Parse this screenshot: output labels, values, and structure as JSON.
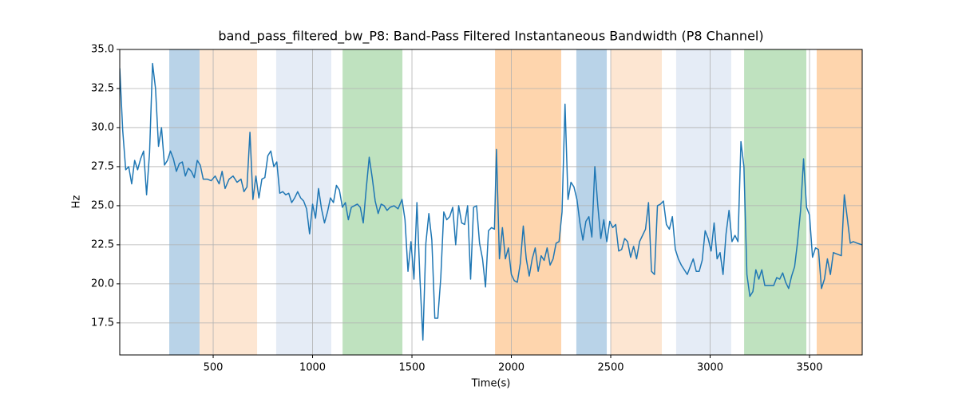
{
  "chart_data": {
    "type": "line",
    "title": "band_pass_filtered_bw_P8: Band-Pass Filtered Instantaneous Bandwidth (P8 Channel)",
    "xlabel": "Time(s)",
    "ylabel": "Hz",
    "color": "#1f77b4",
    "grid": true,
    "xlim": [
      30,
      3765
    ],
    "ylim": [
      15.45,
      35
    ],
    "xticks": [
      500,
      1000,
      1500,
      2000,
      2500,
      3000,
      3500
    ],
    "yticks": [
      17.5,
      {
        "value": 20,
        "label": "20.0"
      },
      22.5,
      {
        "value": 25,
        "label": "25.0"
      },
      27.5,
      {
        "value": 30,
        "label": "30.0"
      },
      32.5,
      {
        "value": 35,
        "label": "35.0"
      }
    ],
    "bands": [
      {
        "x0": 279,
        "x1": 432,
        "color": "#b9d3e8"
      },
      {
        "x0": 432,
        "x1": 721,
        "color": "#fde6d2"
      },
      {
        "x0": 817,
        "x1": 1094,
        "color": "#e5ecf6"
      },
      {
        "x0": 1151,
        "x1": 1452,
        "color": "#bfe2bf"
      },
      {
        "x0": 1918,
        "x1": 2251,
        "color": "#fed5ad"
      },
      {
        "x0": 2327,
        "x1": 2480,
        "color": "#b9d3e8"
      },
      {
        "x0": 2500,
        "x1": 2757,
        "color": "#fde6d2"
      },
      {
        "x0": 2829,
        "x1": 3106,
        "color": "#e5ecf6"
      },
      {
        "x0": 3171,
        "x1": 3484,
        "color": "#bfe2bf"
      },
      {
        "x0": 3536,
        "x1": 3780,
        "color": "#fed5ad"
      }
    ],
    "x": [
      30,
      45,
      60,
      75,
      90,
      105,
      120,
      135,
      150,
      165,
      180,
      195,
      210,
      225,
      240,
      255,
      270,
      285,
      300,
      315,
      330,
      345,
      360,
      375,
      390,
      405,
      420,
      435,
      450,
      470,
      490,
      510,
      530,
      545,
      560,
      580,
      600,
      620,
      640,
      655,
      670,
      685,
      700,
      715,
      730,
      745,
      760,
      775,
      790,
      805,
      820,
      835,
      850,
      865,
      880,
      895,
      910,
      925,
      940,
      955,
      970,
      985,
      1000,
      1015,
      1030,
      1045,
      1060,
      1075,
      1090,
      1105,
      1120,
      1135,
      1150,
      1165,
      1180,
      1195,
      1210,
      1225,
      1240,
      1255,
      1270,
      1285,
      1300,
      1315,
      1330,
      1345,
      1360,
      1375,
      1390,
      1410,
      1430,
      1450,
      1465,
      1480,
      1495,
      1510,
      1525,
      1540,
      1555,
      1570,
      1585,
      1600,
      1615,
      1630,
      1645,
      1660,
      1675,
      1690,
      1705,
      1720,
      1735,
      1750,
      1765,
      1780,
      1795,
      1810,
      1825,
      1840,
      1855,
      1870,
      1885,
      1900,
      1915,
      1925,
      1940,
      1955,
      1970,
      1985,
      2000,
      2015,
      2030,
      2045,
      2060,
      2075,
      2090,
      2105,
      2120,
      2135,
      2150,
      2165,
      2180,
      2195,
      2210,
      2225,
      2240,
      2255,
      2270,
      2285,
      2300,
      2315,
      2330,
      2345,
      2360,
      2375,
      2390,
      2405,
      2420,
      2435,
      2450,
      2465,
      2480,
      2495,
      2510,
      2525,
      2540,
      2555,
      2570,
      2585,
      2600,
      2615,
      2630,
      2645,
      2660,
      2675,
      2690,
      2705,
      2720,
      2735,
      2750,
      2765,
      2780,
      2795,
      2810,
      2825,
      2840,
      2855,
      2870,
      2885,
      2900,
      2915,
      2930,
      2945,
      2960,
      2975,
      2990,
      3005,
      3020,
      3035,
      3050,
      3065,
      3080,
      3095,
      3110,
      3125,
      3140,
      3155,
      3170,
      3185,
      3200,
      3215,
      3230,
      3245,
      3260,
      3275,
      3290,
      3305,
      3320,
      3335,
      3350,
      3365,
      3380,
      3395,
      3410,
      3425,
      3440,
      3455,
      3470,
      3485,
      3500,
      3515,
      3530,
      3545,
      3560,
      3575,
      3590,
      3605,
      3620,
      3640,
      3660,
      3675,
      3690,
      3705,
      3720,
      3740,
      3765
    ],
    "values": [
      33.8,
      29.8,
      27.3,
      27.5,
      26.4,
      27.9,
      27.3,
      28.0,
      28.5,
      25.7,
      28.4,
      34.1,
      32.5,
      28.8,
      30.0,
      27.6,
      27.9,
      28.5,
      28.0,
      27.2,
      27.7,
      27.8,
      26.9,
      27.4,
      27.2,
      26.8,
      27.9,
      27.6,
      26.7,
      26.7,
      26.6,
      26.9,
      26.4,
      27.2,
      26.1,
      26.7,
      26.9,
      26.5,
      26.7,
      25.9,
      26.2,
      29.7,
      25.4,
      26.9,
      25.5,
      26.7,
      26.8,
      28.2,
      28.5,
      27.5,
      27.8,
      25.8,
      25.9,
      25.7,
      25.8,
      25.2,
      25.5,
      25.9,
      25.5,
      25.3,
      24.8,
      23.2,
      25.1,
      24.2,
      26.1,
      24.8,
      23.9,
      24.6,
      25.5,
      25.2,
      26.3,
      26.0,
      24.9,
      25.2,
      24.1,
      24.9,
      25.0,
      25.1,
      24.9,
      23.9,
      26.1,
      28.1,
      26.8,
      25.3,
      24.5,
      25.1,
      25.0,
      24.7,
      24.9,
      25.0,
      24.8,
      25.4,
      24.1,
      20.8,
      22.7,
      20.3,
      25.2,
      20.4,
      16.4,
      22.6,
      24.5,
      22.8,
      17.8,
      17.8,
      20.4,
      24.6,
      24.1,
      24.3,
      24.9,
      22.5,
      25.0,
      23.9,
      23.8,
      25.0,
      20.3,
      24.9,
      25.0,
      22.6,
      21.6,
      19.8,
      23.4,
      23.6,
      23.5,
      28.6,
      21.6,
      23.6,
      21.6,
      22.3,
      20.6,
      20.2,
      20.1,
      21.3,
      23.7,
      21.6,
      20.5,
      21.6,
      22.3,
      20.8,
      21.8,
      21.5,
      22.3,
      21.2,
      21.6,
      22.6,
      22.7,
      24.6,
      31.5,
      25.4,
      26.5,
      26.2,
      25.4,
      23.9,
      22.8,
      24.0,
      24.3,
      23.0,
      27.5,
      25.0,
      22.9,
      24.1,
      22.7,
      24.0,
      23.6,
      23.8,
      22.1,
      22.2,
      22.9,
      22.7,
      21.7,
      22.4,
      21.6,
      22.7,
      23.1,
      23.5,
      25.2,
      20.8,
      20.6,
      25.0,
      25.1,
      25.3,
      23.8,
      23.5,
      24.3,
      22.2,
      21.6,
      21.2,
      20.9,
      20.6,
      21.1,
      21.6,
      20.8,
      20.8,
      21.5,
      23.4,
      22.9,
      22.1,
      23.9,
      21.6,
      22.0,
      20.6,
      23.2,
      24.7,
      22.7,
      23.1,
      22.7,
      29.1,
      27.5,
      20.6,
      19.2,
      19.5,
      20.9,
      20.3,
      20.9,
      19.9,
      19.9,
      19.9,
      19.9,
      20.4,
      20.3,
      20.7,
      20.1,
      19.7,
      20.5,
      21.1,
      22.7,
      24.7,
      28.0,
      24.9,
      24.4,
      21.7,
      22.3,
      22.2,
      19.7,
      20.3,
      21.6,
      20.6,
      22.0,
      21.9,
      21.8,
      25.7,
      24.2,
      22.6,
      22.7,
      22.6,
      22.5
    ]
  }
}
